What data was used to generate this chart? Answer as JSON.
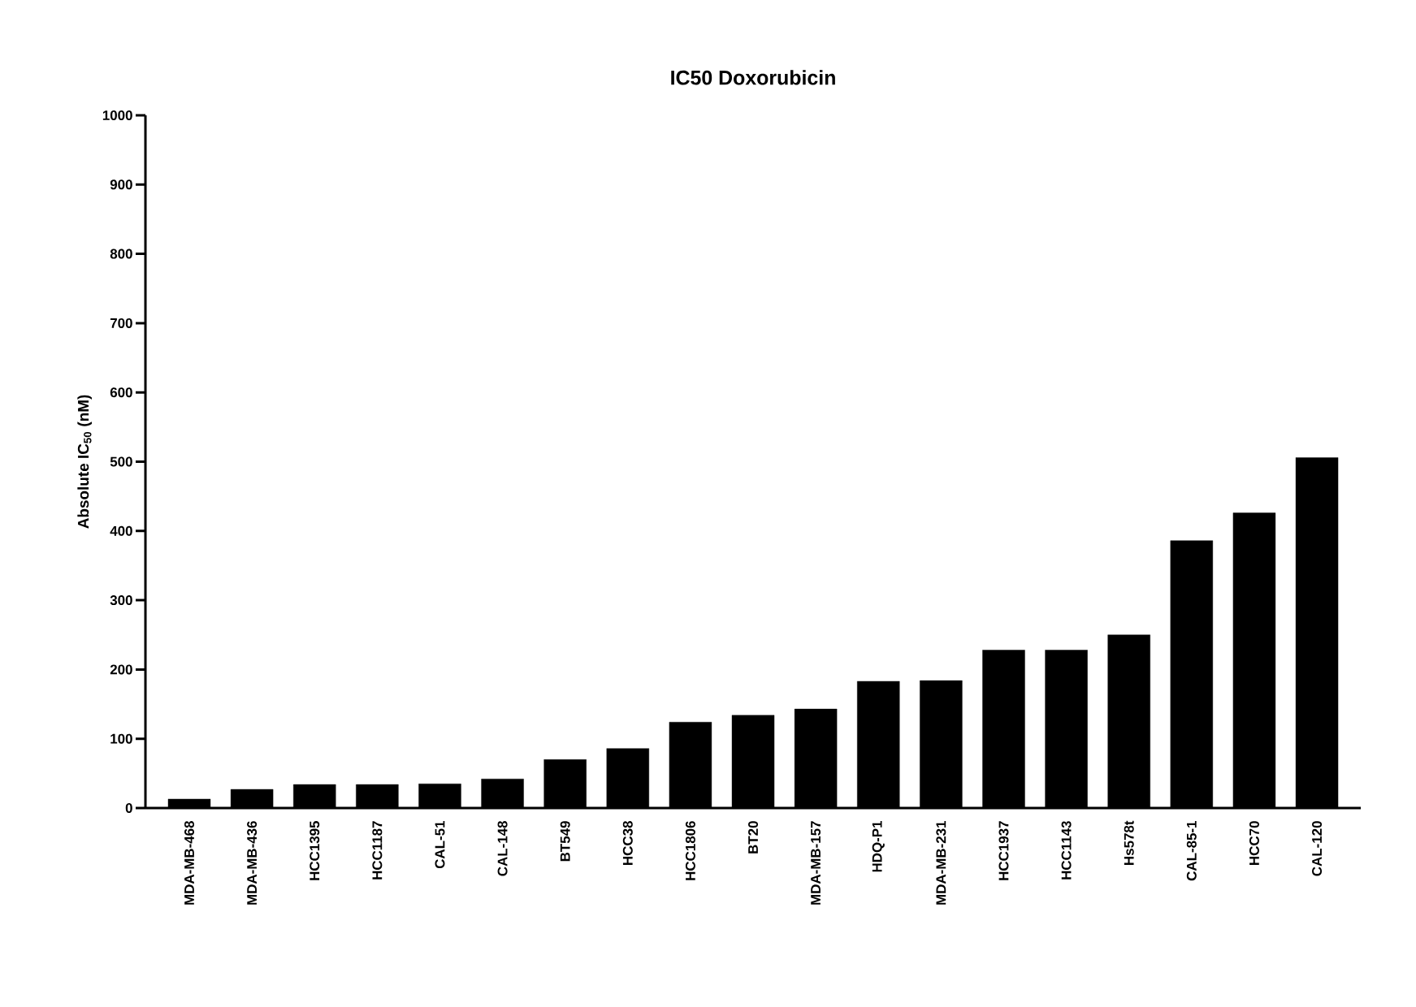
{
  "chart_data": {
    "type": "bar",
    "title": "IC50 Doxorubicin",
    "ylabel": "Absolute IC$_{50}$ (nM)",
    "categories": [
      "MDA-MB-468",
      "MDA-MB-436",
      "HCC1395",
      "HCC1187",
      "CAL-51",
      "CAL-148",
      "BT549",
      "HCC38",
      "HCC1806",
      "BT20",
      "MDA-MB-157",
      "HDQ-P1",
      "MDA-MB-231",
      "HCC1937",
      "HCC1143",
      "Hs578t",
      "CAL-85-1",
      "HCC70",
      "CAL-120"
    ],
    "values": [
      13,
      27,
      34,
      34,
      35,
      42,
      70,
      86,
      124,
      134,
      143,
      183,
      184,
      228,
      228,
      250,
      386,
      426,
      506
    ],
    "color": "#000000",
    "ylim": [
      0,
      1000
    ],
    "yticks": [
      0,
      100,
      200,
      300,
      400,
      500,
      600,
      700,
      800,
      900,
      1000
    ],
    "grid": false
  }
}
